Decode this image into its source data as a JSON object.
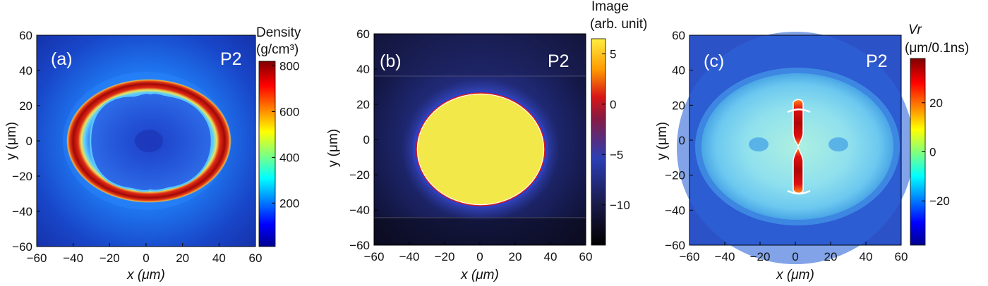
{
  "chart_data": [
    {
      "type": "heatmap",
      "panel_label": "(a)",
      "tag": "P2",
      "xlabel": "x (μm)",
      "ylabel": "y (μm)",
      "xlim": [
        -60,
        60
      ],
      "ylim": [
        -60,
        60
      ],
      "xticks": [
        -60,
        -40,
        -20,
        0,
        20,
        40,
        60
      ],
      "yticks": [
        -60,
        -40,
        -20,
        0,
        20,
        40,
        60
      ],
      "colorbar": {
        "title": [
          "Density",
          "(g/cm³)"
        ],
        "range": [
          10,
          820
        ],
        "ticks": [
          200,
          400,
          600,
          800
        ],
        "colormap": "jet"
      },
      "features": {
        "shell_center_radius_x": 40,
        "shell_center_radius_y": 31,
        "shell_peak_density": 800,
        "interior_density": 100,
        "background_density": 200
      }
    },
    {
      "type": "heatmap",
      "panel_label": "(b)",
      "tag": "P2",
      "xlabel": "x (μm)",
      "ylabel": "y (μm)",
      "xlim": [
        -60,
        60
      ],
      "ylim": [
        -60,
        60
      ],
      "xticks": [
        -60,
        -40,
        -20,
        0,
        20,
        40,
        60
      ],
      "yticks": [
        -60,
        -40,
        -20,
        0,
        20,
        40,
        60
      ],
      "colorbar": {
        "title": [
          "Image",
          "(arb. unit)"
        ],
        "range": [
          -14,
          6.5
        ],
        "ticks": [
          5,
          0,
          -5,
          -10
        ],
        "colormap": "hot"
      },
      "features": {
        "core_radius_x": 35,
        "core_radius_y": 30,
        "core_value": 5,
        "background_value": -11
      }
    },
    {
      "type": "heatmap",
      "panel_label": "(c)",
      "tag": "P2",
      "xlabel": "x (μm)",
      "ylabel": "y (μm)",
      "xlim": [
        -60,
        60
      ],
      "ylim": [
        -60,
        60
      ],
      "xticks": [
        -60,
        -40,
        -20,
        0,
        20,
        40,
        60
      ],
      "yticks": [
        -60,
        -40,
        -20,
        0,
        20,
        40,
        60
      ],
      "colorbar": {
        "title": [
          "Vr",
          "(μm/0.1ns)"
        ],
        "range": [
          -38,
          38
        ],
        "ticks": [
          20,
          0,
          -20
        ],
        "colormap": "jet"
      },
      "features": {
        "ellipse_radius_x": 55,
        "ellipse_radius_y": 40,
        "jet_peak_velocity": 35,
        "jet_y_positions": [
          20,
          -20
        ],
        "background_velocity": -30
      }
    }
  ]
}
